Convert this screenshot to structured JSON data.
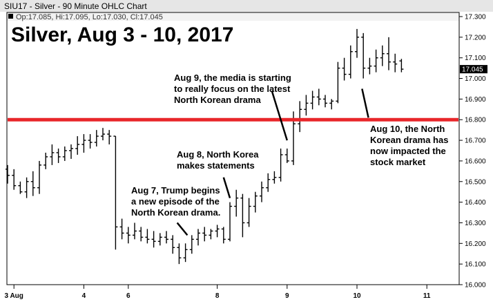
{
  "header": {
    "title": "SIU17 - Silver - 90 Minute OHLC Chart",
    "ohlc": "Op:17.085, Hi:17.095, Lo:17.030, Cl:17.045"
  },
  "chart_data": {
    "type": "ohlc",
    "title": "Silver, Aug 3 - 10, 2017",
    "ylim": [
      16.0,
      17.3
    ],
    "y_ticks": [
      "16.000",
      "16.100",
      "16.200",
      "16.300",
      "16.400",
      "16.500",
      "16.600",
      "16.700",
      "16.800",
      "16.900",
      "17.000",
      "17.100",
      "17.200",
      "17.300"
    ],
    "x_ticks": [
      {
        "label": "3 Aug",
        "bar": 1
      },
      {
        "label": "4",
        "bar": 12
      },
      {
        "label": "6",
        "bar": 19
      },
      {
        "label": "8",
        "bar": 33
      },
      {
        "label": "9",
        "bar": 44
      },
      {
        "label": "10",
        "bar": 55
      },
      {
        "label": "11",
        "bar": 66
      }
    ],
    "current_price": "17.045",
    "current_price_value": 17.045,
    "horizontal_line": {
      "value": 16.8,
      "color": "#e8262a"
    },
    "bars": [
      {
        "o": 16.56,
        "h": 16.58,
        "l": 16.49,
        "c": 16.53
      },
      {
        "o": 16.53,
        "h": 16.56,
        "l": 16.46,
        "c": 16.48
      },
      {
        "o": 16.48,
        "h": 16.5,
        "l": 16.44,
        "c": 16.45
      },
      {
        "o": 16.45,
        "h": 16.52,
        "l": 16.42,
        "c": 16.5
      },
      {
        "o": 16.5,
        "h": 16.55,
        "l": 16.43,
        "c": 16.47
      },
      {
        "o": 16.47,
        "h": 16.6,
        "l": 16.44,
        "c": 16.58
      },
      {
        "o": 16.58,
        "h": 16.64,
        "l": 16.56,
        "c": 16.62
      },
      {
        "o": 16.62,
        "h": 16.68,
        "l": 16.58,
        "c": 16.64
      },
      {
        "o": 16.64,
        "h": 16.66,
        "l": 16.59,
        "c": 16.62
      },
      {
        "o": 16.62,
        "h": 16.67,
        "l": 16.6,
        "c": 16.65
      },
      {
        "o": 16.65,
        "h": 16.68,
        "l": 16.61,
        "c": 16.66
      },
      {
        "o": 16.66,
        "h": 16.72,
        "l": 16.63,
        "c": 16.68
      },
      {
        "o": 16.68,
        "h": 16.73,
        "l": 16.64,
        "c": 16.7
      },
      {
        "o": 16.7,
        "h": 16.73,
        "l": 16.66,
        "c": 16.69
      },
      {
        "o": 16.69,
        "h": 16.75,
        "l": 16.67,
        "c": 16.72
      },
      {
        "o": 16.72,
        "h": 16.76,
        "l": 16.7,
        "c": 16.73
      },
      {
        "o": 16.73,
        "h": 16.75,
        "l": 16.68,
        "c": 16.72
      },
      {
        "o": 16.72,
        "h": 16.72,
        "l": 16.17,
        "c": 16.28
      },
      {
        "o": 16.28,
        "h": 16.32,
        "l": 16.22,
        "c": 16.25
      },
      {
        "o": 16.25,
        "h": 16.28,
        "l": 16.2,
        "c": 16.24
      },
      {
        "o": 16.24,
        "h": 16.3,
        "l": 16.22,
        "c": 16.26
      },
      {
        "o": 16.26,
        "h": 16.28,
        "l": 16.21,
        "c": 16.23
      },
      {
        "o": 16.23,
        "h": 16.27,
        "l": 16.2,
        "c": 16.22
      },
      {
        "o": 16.22,
        "h": 16.26,
        "l": 16.18,
        "c": 16.21
      },
      {
        "o": 16.21,
        "h": 16.25,
        "l": 16.19,
        "c": 16.23
      },
      {
        "o": 16.23,
        "h": 16.26,
        "l": 16.2,
        "c": 16.22
      },
      {
        "o": 16.22,
        "h": 16.24,
        "l": 16.15,
        "c": 16.18
      },
      {
        "o": 16.18,
        "h": 16.2,
        "l": 16.1,
        "c": 16.13
      },
      {
        "o": 16.13,
        "h": 16.2,
        "l": 16.11,
        "c": 16.17
      },
      {
        "o": 16.17,
        "h": 16.24,
        "l": 16.15,
        "c": 16.22
      },
      {
        "o": 16.22,
        "h": 16.27,
        "l": 16.19,
        "c": 16.25
      },
      {
        "o": 16.25,
        "h": 16.28,
        "l": 16.21,
        "c": 16.24
      },
      {
        "o": 16.24,
        "h": 16.27,
        "l": 16.22,
        "c": 16.26
      },
      {
        "o": 16.26,
        "h": 16.29,
        "l": 16.23,
        "c": 16.27
      },
      {
        "o": 16.27,
        "h": 16.28,
        "l": 16.2,
        "c": 16.22
      },
      {
        "o": 16.22,
        "h": 16.4,
        "l": 16.21,
        "c": 16.38
      },
      {
        "o": 16.38,
        "h": 16.46,
        "l": 16.33,
        "c": 16.42
      },
      {
        "o": 16.42,
        "h": 16.44,
        "l": 16.23,
        "c": 16.3
      },
      {
        "o": 16.3,
        "h": 16.42,
        "l": 16.28,
        "c": 16.38
      },
      {
        "o": 16.38,
        "h": 16.45,
        "l": 16.35,
        "c": 16.43
      },
      {
        "o": 16.43,
        "h": 16.5,
        "l": 16.4,
        "c": 16.47
      },
      {
        "o": 16.47,
        "h": 16.54,
        "l": 16.45,
        "c": 16.51
      },
      {
        "o": 16.51,
        "h": 16.55,
        "l": 16.49,
        "c": 16.52
      },
      {
        "o": 16.52,
        "h": 16.66,
        "l": 16.5,
        "c": 16.63
      },
      {
        "o": 16.63,
        "h": 16.66,
        "l": 16.59,
        "c": 16.6
      },
      {
        "o": 16.6,
        "h": 16.84,
        "l": 16.58,
        "c": 16.78
      },
      {
        "o": 16.78,
        "h": 16.89,
        "l": 16.74,
        "c": 16.85
      },
      {
        "o": 16.85,
        "h": 16.92,
        "l": 16.82,
        "c": 16.88
      },
      {
        "o": 16.88,
        "h": 16.94,
        "l": 16.85,
        "c": 16.91
      },
      {
        "o": 16.91,
        "h": 16.95,
        "l": 16.87,
        "c": 16.9
      },
      {
        "o": 16.9,
        "h": 16.92,
        "l": 16.86,
        "c": 16.88
      },
      {
        "o": 16.88,
        "h": 16.9,
        "l": 16.85,
        "c": 16.89
      },
      {
        "o": 16.89,
        "h": 17.08,
        "l": 16.88,
        "c": 17.05
      },
      {
        "o": 17.05,
        "h": 17.1,
        "l": 16.99,
        "c": 17.02
      },
      {
        "o": 17.02,
        "h": 17.16,
        "l": 17.0,
        "c": 17.13
      },
      {
        "o": 17.13,
        "h": 17.24,
        "l": 17.1,
        "c": 17.2
      },
      {
        "o": 17.2,
        "h": 17.22,
        "l": 17.0,
        "c": 17.05
      },
      {
        "o": 17.05,
        "h": 17.1,
        "l": 17.02,
        "c": 17.06
      },
      {
        "o": 17.06,
        "h": 17.14,
        "l": 17.03,
        "c": 17.1
      },
      {
        "o": 17.1,
        "h": 17.16,
        "l": 17.06,
        "c": 17.12
      },
      {
        "o": 17.12,
        "h": 17.2,
        "l": 17.04,
        "c": 17.08
      },
      {
        "o": 17.08,
        "h": 17.12,
        "l": 17.03,
        "c": 17.07
      },
      {
        "o": 17.085,
        "h": 17.095,
        "l": 17.03,
        "c": 17.045
      }
    ],
    "annotations": [
      {
        "lines": [
          "Aug 7, Trump begins",
          "a new episode of the",
          "North Korean drama."
        ],
        "arrow": {
          "from": [
            16.3,
            26.7
          ],
          "to": [
            16.24,
            28.3
          ]
        }
      },
      {
        "lines": [
          "Aug 8, North Korea",
          "makes statements"
        ],
        "arrow": {
          "from": [
            16.52,
            34.0
          ],
          "to": [
            16.42,
            35.0
          ]
        }
      },
      {
        "lines": [
          "Aug 9, the media is starting",
          "to really focus on the latest",
          "North Korean drama"
        ],
        "arrow": {
          "from": [
            16.94,
            41.6
          ],
          "to": [
            16.7,
            44.0
          ]
        }
      },
      {
        "lines": [
          "Aug 10, the North",
          "Korean drama has",
          "now impacted the",
          "stock market"
        ],
        "arrow": {
          "from": [
            16.95,
            55.8
          ],
          "to": [
            16.81,
            56.8
          ]
        }
      }
    ]
  }
}
